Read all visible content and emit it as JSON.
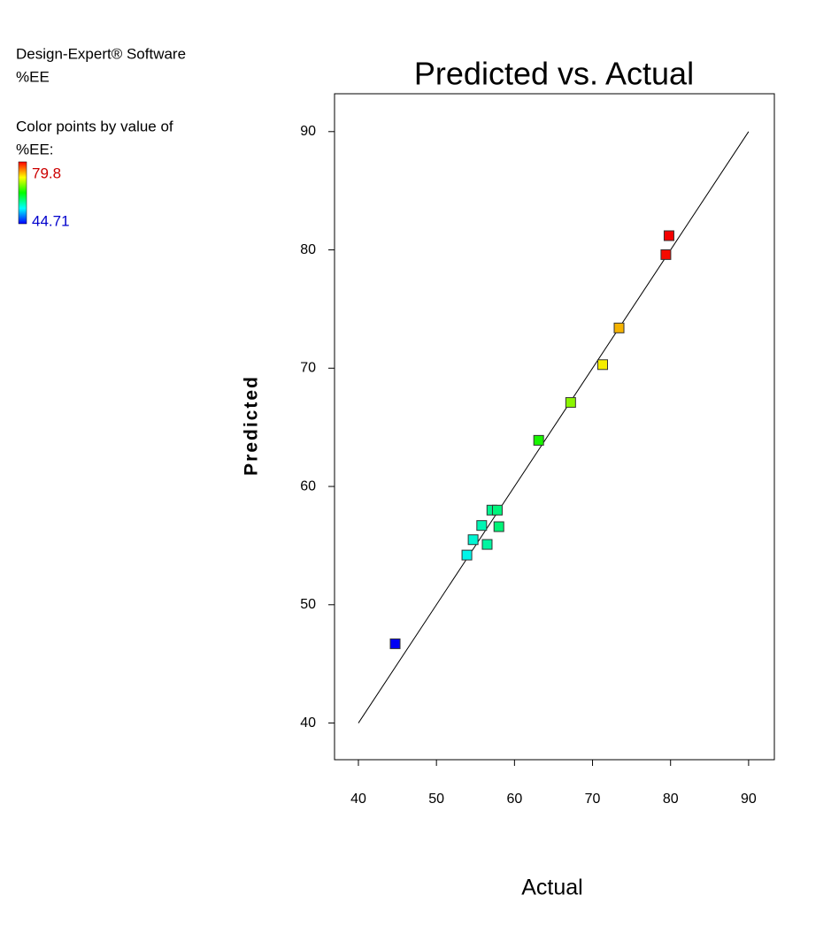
{
  "chart_data": {
    "type": "scatter",
    "title": "Predicted vs. Actual",
    "x_label": "Actual",
    "y_label": "Predicted",
    "annotations": [
      "Design-Expert® Software",
      "%EE",
      "Color points by value of",
      "%EE:"
    ],
    "color_scale": {
      "max": 79.8,
      "min": 44.71
    },
    "x": [
      44.71,
      53.9,
      54.7,
      55.8,
      56.5,
      57.1,
      57.8,
      58.0,
      63.1,
      67.2,
      71.3,
      73.4,
      79.4,
      79.8
    ],
    "values": [
      46.7,
      54.2,
      55.5,
      56.7,
      55.1,
      58.0,
      58.0,
      56.6,
      63.9,
      67.1,
      70.3,
      73.4,
      79.6,
      81.2
    ],
    "reference_line": {
      "start": 40,
      "end": 90
    },
    "xlim": [
      36.94,
      93.3
    ],
    "ylim": [
      36.9,
      93.2
    ],
    "xticks": [
      40,
      50,
      60,
      70,
      80,
      90
    ],
    "yticks": [
      40,
      50,
      60,
      70,
      80,
      90
    ]
  }
}
